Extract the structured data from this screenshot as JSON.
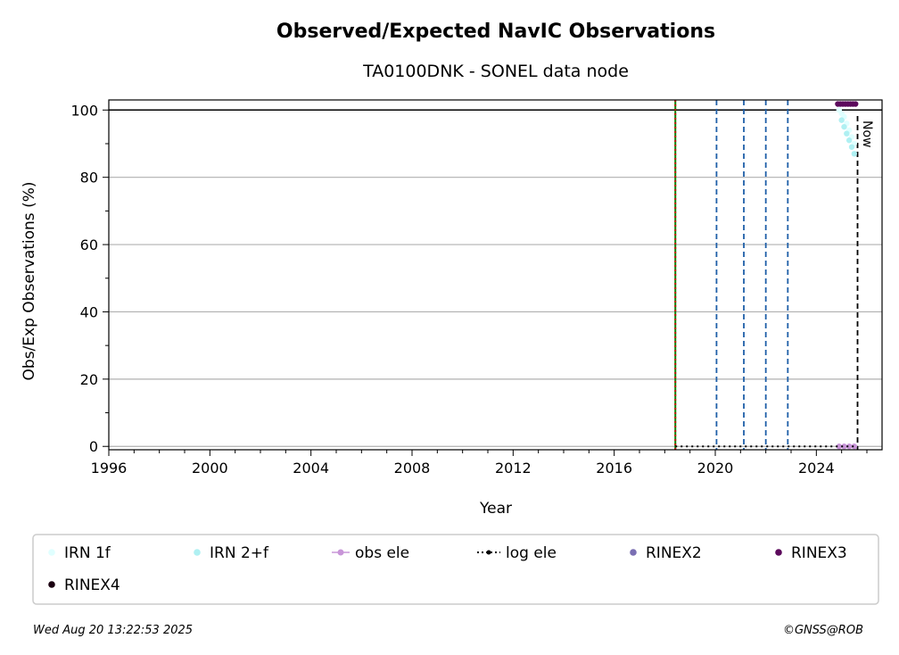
{
  "chart_data": {
    "type": "scatter",
    "title": "Observed/Expected NavIC Observations",
    "subtitle": "TA0100DNK - SONEL data node",
    "xlabel": "Year",
    "ylabel": "Obs/Exp Observations (%)",
    "xlim": [
      1996,
      2026.6
    ],
    "ylim": [
      -1,
      103
    ],
    "x_ticks": [
      1996,
      2000,
      2004,
      2008,
      2012,
      2016,
      2020,
      2024
    ],
    "y_ticks": [
      0,
      20,
      40,
      60,
      80,
      100
    ],
    "grid": "horizontal",
    "reference_line_y": 100,
    "now_label": "Now",
    "now_x": 2025.63,
    "vlines": [
      {
        "x": 2018.42,
        "style": "solid",
        "color": "#008000"
      },
      {
        "x": 2018.42,
        "style": "dotted",
        "color": "#cc0000"
      },
      {
        "x": 2020.05,
        "style": "dashed",
        "color": "#1f5fa8"
      },
      {
        "x": 2021.13,
        "style": "dashed",
        "color": "#1f5fa8"
      },
      {
        "x": 2022.0,
        "style": "dashed",
        "color": "#1f5fa8"
      },
      {
        "x": 2022.87,
        "style": "dashed",
        "color": "#1f5fa8"
      }
    ],
    "series": [
      {
        "name": "IRN 1f",
        "color": "#e0ffff",
        "marker": "dot",
        "x": [
          2024.9,
          2025.0,
          2025.1,
          2025.2,
          2025.3,
          2025.4,
          2025.5
        ],
        "y": [
          100,
          99,
          98,
          96,
          94,
          92,
          90
        ]
      },
      {
        "name": "IRN 2+f",
        "color": "#aff0f2",
        "marker": "dot",
        "x": [
          2025.0,
          2025.1,
          2025.2,
          2025.3,
          2025.4,
          2025.5
        ],
        "y": [
          97,
          95,
          93,
          91,
          89,
          87
        ]
      },
      {
        "name": "obs ele",
        "color": "#c895d8",
        "marker": "dot-line",
        "x": [
          2024.9,
          2025.1,
          2025.3,
          2025.5
        ],
        "y": [
          0,
          0,
          0,
          0
        ]
      },
      {
        "name": "log ele",
        "color": "#000000",
        "marker": "dotted-line",
        "x": [
          2018.42,
          2025.63
        ],
        "y": [
          0,
          0
        ]
      },
      {
        "name": "RINEX2",
        "color": "#7a6fb3",
        "marker": "dot",
        "x": [],
        "y": []
      },
      {
        "name": "RINEX3",
        "color": "#5c0a5c",
        "marker": "dot",
        "x": [
          2024.85,
          2024.95,
          2025.05,
          2025.15,
          2025.25,
          2025.35,
          2025.45,
          2025.55
        ],
        "y": [
          101.8,
          101.8,
          101.8,
          101.8,
          101.8,
          101.8,
          101.8,
          101.8
        ]
      },
      {
        "name": "RINEX4",
        "color": "#1a0010",
        "marker": "dot",
        "x": [],
        "y": []
      }
    ],
    "legend_placement": "bottom"
  },
  "footer": {
    "timestamp": "Wed Aug 20 13:22:53 2025",
    "credit": "©GNSS@ROB"
  }
}
